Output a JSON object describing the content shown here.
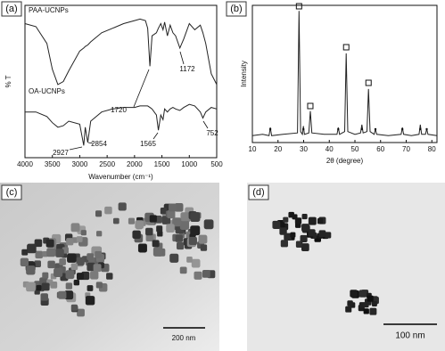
{
  "panel_labels": [
    "(a)",
    "(b)",
    "(c)",
    "(d)"
  ],
  "chart_data": [
    {
      "type": "line",
      "x_label": "Wavenumber (cm⁻¹)",
      "y_label": "% T",
      "xlim": [
        4000,
        500
      ],
      "xticks": [
        4000,
        3500,
        3000,
        2500,
        2000,
        1500,
        1000,
        500
      ],
      "ylim": [
        0,
        100
      ],
      "x": [
        4000,
        3800,
        3600,
        3500,
        3400,
        3300,
        3200,
        3000,
        2927,
        2900,
        2854,
        2800,
        2600,
        2400,
        2200,
        2000,
        1900,
        1800,
        1760,
        1720,
        1680,
        1600,
        1565,
        1520,
        1480,
        1450,
        1400,
        1350,
        1300,
        1250,
        1172,
        1100,
        1000,
        900,
        800,
        752,
        700,
        600,
        500
      ],
      "series": [
        {
          "name": "PAA-UCNPs",
          "color": "#222222",
          "values": [
            88,
            86,
            75,
            58,
            48,
            50,
            57,
            70,
            72,
            73,
            74,
            76,
            82,
            85,
            88,
            90,
            91,
            90,
            85,
            60,
            80,
            82,
            85,
            88,
            84,
            89,
            80,
            87,
            82,
            80,
            72,
            78,
            88,
            84,
            87,
            82,
            75,
            55,
            48
          ]
        },
        {
          "name": "OA-UCNPs",
          "color": "#222222",
          "values": [
            30,
            30,
            27,
            23,
            20,
            21,
            24,
            22,
            8,
            20,
            10,
            24,
            30,
            32,
            33,
            33,
            34,
            34,
            34,
            33,
            32,
            28,
            18,
            28,
            25,
            32,
            30,
            32,
            33,
            32,
            31,
            33,
            35,
            34,
            30,
            26,
            30,
            33,
            32
          ]
        }
      ],
      "annotations": [
        "1720",
        "1172",
        "2927",
        "2854",
        "1565",
        "752"
      ]
    },
    {
      "type": "line",
      "x_label": "2θ (degree)",
      "y_label": "Intensity",
      "xlim": [
        10,
        82
      ],
      "xticks": [
        10,
        20,
        30,
        40,
        50,
        60,
        70,
        80
      ],
      "ylim": [
        0,
        100
      ],
      "color": "#222222",
      "x": [
        10,
        14,
        16.5,
        17,
        17.5,
        22,
        27.6,
        28.2,
        28.8,
        29.5,
        29.9,
        30.3,
        32.0,
        32.6,
        33.2,
        38,
        43,
        43.5,
        44,
        46,
        46.6,
        47.2,
        50,
        52.2,
        52.7,
        53.2,
        54.7,
        55.3,
        55.9,
        57.5,
        58,
        58.5,
        63,
        68,
        68.5,
        69,
        72,
        75,
        75.5,
        76,
        77.5,
        78,
        78.5,
        82
      ],
      "values": [
        5,
        6,
        5,
        11,
        5,
        6,
        7,
        96,
        8,
        6,
        12,
        6,
        7,
        23,
        7,
        6,
        6,
        11,
        6,
        8,
        65,
        8,
        6,
        7,
        13,
        7,
        8,
        39,
        8,
        6,
        10,
        6,
        5,
        6,
        11,
        6,
        5,
        6,
        13,
        6,
        6,
        10,
        6,
        5
      ]
    }
  ],
  "images": [
    {
      "scale_bar": "200 nm"
    },
    {
      "scale_bar": "100 nm"
    }
  ]
}
